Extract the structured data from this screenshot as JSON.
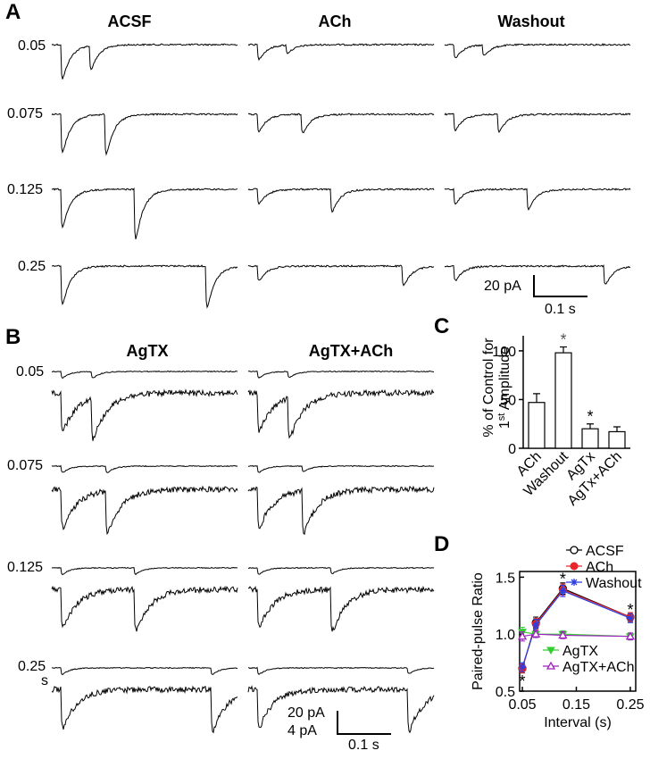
{
  "panels": {
    "a": {
      "letter": "A",
      "conditions": [
        "ACSF",
        "ACh",
        "Washout"
      ],
      "intervals": [
        "0.05",
        "0.075",
        "0.125",
        "0.25"
      ],
      "scalebar": {
        "amp": "20 pA",
        "time": "0.1 s"
      }
    },
    "b": {
      "letter": "B",
      "conditions": [
        "AgTX",
        "AgTX+ACh"
      ],
      "intervals": [
        "0.05",
        "0.075",
        "0.125",
        "0.25"
      ],
      "s_suffix": "s",
      "scalebar": {
        "amp1": "20 pA",
        "amp2": "4 pA",
        "time": "0.1 s"
      }
    },
    "c": {
      "letter": "C"
    },
    "d": {
      "letter": "D"
    }
  },
  "chart_data": [
    {
      "type": "bar",
      "panel": "C",
      "categories": [
        "ACh",
        "Washout",
        "AgTx",
        "AgTx+ACh"
      ],
      "values": [
        47,
        98,
        20,
        17
      ],
      "errors": [
        9,
        6,
        5,
        5
      ],
      "significance": [
        "",
        "*",
        "*",
        ""
      ],
      "ylabel": "% of Control for 1st Amplitude",
      "ylabel_line1": "% of Control for",
      "ylabel_line2": "Amplitude",
      "ylabel_ordinal": "1",
      "ylabel_sup": "st",
      "ylim": [
        0,
        110
      ],
      "yticks": [
        "0",
        "50",
        "100"
      ]
    },
    {
      "type": "line",
      "panel": "D",
      "x": [
        0.05,
        0.075,
        0.125,
        0.25
      ],
      "xticks": [
        "0.05",
        "0.15",
        "0.25"
      ],
      "yticks": [
        "0.5",
        "1.0",
        "1.5"
      ],
      "xlabel": "Interval (s)",
      "ylabel": "Paired-pulse Ratio",
      "xlim": [
        0.045,
        0.26
      ],
      "ylim": [
        0.5,
        1.55
      ],
      "significance": [
        {
          "x": 0.05,
          "y": 0.6
        },
        {
          "x": 0.125,
          "y": 1.5
        },
        {
          "x": 0.25,
          "y": 1.23
        }
      ],
      "series": [
        {
          "name": "ACSF",
          "values": [
            0.7,
            1.1,
            1.4,
            1.15
          ],
          "errors": [
            0.04,
            0.05,
            0.05,
            0.04
          ],
          "color": "#000000",
          "marker": "circle-open"
        },
        {
          "name": "ACh",
          "values": [
            0.7,
            1.09,
            1.39,
            1.15
          ],
          "errors": [
            0.04,
            0.05,
            0.05,
            0.04
          ],
          "color": "#e8262a",
          "marker": "circle-filled"
        },
        {
          "name": "Washout",
          "values": [
            0.71,
            1.08,
            1.38,
            1.14
          ],
          "errors": [
            0.04,
            0.05,
            0.05,
            0.04
          ],
          "color": "#2a3ee0",
          "marker": "star"
        },
        {
          "name": "AgTX",
          "values": [
            1.02,
            1.0,
            1.0,
            0.98
          ],
          "errors": [
            0.04,
            0.03,
            0.03,
            0.03
          ],
          "color": "#33cc33",
          "marker": "triangle-down"
        },
        {
          "name": "AgTX+ACh",
          "values": [
            0.98,
            1.0,
            0.99,
            0.98
          ],
          "errors": [
            0.04,
            0.03,
            0.03,
            0.03
          ],
          "color": "#a020c0",
          "marker": "triangle-open"
        }
      ]
    }
  ]
}
